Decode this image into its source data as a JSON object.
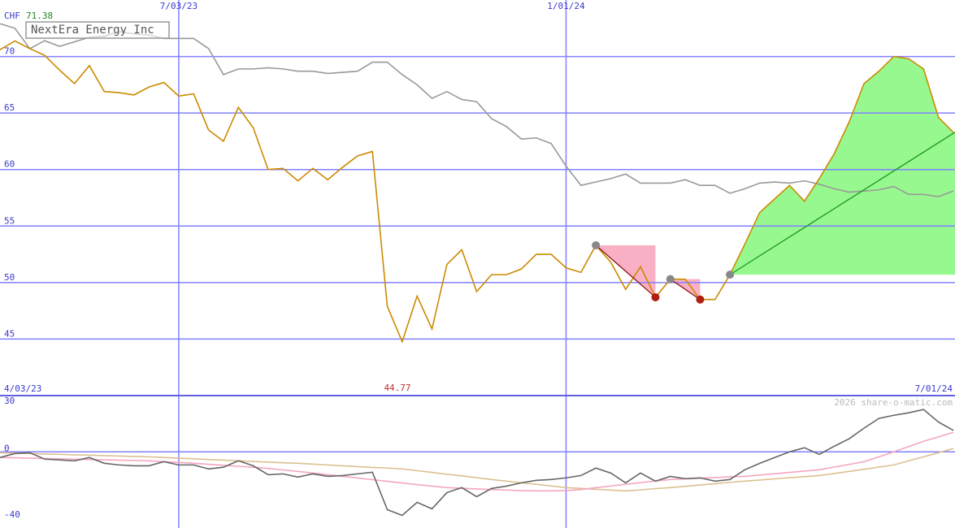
{
  "chart_data": [
    {
      "type": "line",
      "title": "NextEra Energy Inc",
      "currency": "CHF",
      "high_label": 71.38,
      "low_label": 44.77,
      "watermark": "2026 share-o-matic.com",
      "categories": [
        "4/03/23",
        null,
        null,
        null,
        null,
        null,
        null,
        null,
        null,
        null,
        null,
        null,
        "7/03/23",
        null,
        null,
        null,
        null,
        null,
        null,
        null,
        null,
        null,
        null,
        null,
        null,
        null,
        null,
        null,
        null,
        null,
        null,
        null,
        null,
        null,
        null,
        null,
        null,
        null,
        "1/01/24",
        null,
        null,
        null,
        null,
        null,
        null,
        null,
        null,
        null,
        null,
        null,
        null,
        null,
        null,
        null,
        null,
        null,
        null,
        null,
        null,
        null,
        null,
        null,
        null,
        null,
        "7/01/24"
      ],
      "series": [
        {
          "name": "NextEra Energy Inc",
          "color": "#cc8a00",
          "values": [
            70.6,
            71.38,
            70.7,
            70.1,
            68.8,
            67.6,
            69.2,
            66.9,
            66.8,
            66.6,
            67.3,
            67.7,
            66.5,
            66.7,
            63.5,
            62.5,
            65.5,
            63.7,
            60.0,
            60.1,
            59.0,
            60.1,
            59.1,
            60.2,
            61.2,
            61.6,
            47.9,
            44.77,
            48.8,
            45.9,
            51.6,
            52.9,
            49.2,
            50.7,
            50.7,
            51.2,
            52.5,
            52.5,
            51.3,
            50.9,
            53.3,
            51.8,
            49.4,
            51.4,
            48.7,
            50.3,
            50.3,
            48.5,
            48.5,
            50.7,
            53.4,
            56.2,
            57.4,
            58.6,
            57.2,
            59.2,
            61.4,
            64.2,
            67.6,
            68.7,
            70.0,
            69.8,
            68.9,
            64.6,
            63.3
          ]
        },
        {
          "color": "#999999",
          "values": [
            72.9,
            72.5,
            70.7,
            71.4,
            70.9,
            71.3,
            71.7,
            71.8,
            72.2,
            72.0,
            71.9,
            71.6,
            71.6,
            71.6,
            70.7,
            68.4,
            68.9,
            68.9,
            69.0,
            68.9,
            68.7,
            68.7,
            68.5,
            68.6,
            68.7,
            69.5,
            69.5,
            68.4,
            67.5,
            66.3,
            66.9,
            66.2,
            66.0,
            64.5,
            63.8,
            62.7,
            62.8,
            62.3,
            60.3,
            58.6,
            58.9,
            59.2,
            59.6,
            58.8,
            58.8,
            58.8,
            59.1,
            58.6,
            58.6,
            57.9,
            58.3,
            58.8,
            58.9,
            58.8,
            59.0,
            58.7,
            58.3,
            58.0,
            58.1,
            58.2,
            58.5,
            57.8,
            57.8,
            57.6,
            58.1
          ]
        }
      ],
      "ylim": [
        40,
        75
      ],
      "yticks": [
        45,
        50,
        55,
        60,
        65,
        70
      ],
      "grid": true
    },
    {
      "type": "line",
      "series": [
        {
          "color": "#666666",
          "values": [
            -3.4,
            -1,
            -0.5,
            -4.4,
            -4.9,
            -5.4,
            -3.4,
            -6.9,
            -7.9,
            -8.4,
            -8.4,
            -5.9,
            -7.9,
            -7.9,
            -10.3,
            -9.3,
            -5.4,
            -8.4,
            -13.8,
            -13.3,
            -15.2,
            -13.3,
            -14.8,
            -14.3,
            -13.3,
            -12.3,
            -34.9,
            -38.4,
            -30.5,
            -34.4,
            -24.6,
            -21.6,
            -27.1,
            -22.1,
            -20.7,
            -18.7,
            -17.2,
            -16.7,
            -15.7,
            -14.3,
            -9.8,
            -12.8,
            -18.7,
            -12.8,
            -17.7,
            -14.8,
            -16.2,
            -15.7,
            -17.7,
            -16.7,
            -10.8,
            -6.9,
            -3.4,
            0,
            2.5,
            -1.5,
            3.4,
            7.9,
            14.3,
            20.2,
            22.1,
            23.6,
            25.6,
            18,
            13
          ]
        },
        {
          "color": "#f4a6c0",
          "values": [
            -3.4,
            -3.6,
            -3.8,
            -4,
            -4.2,
            -4.4,
            -4.6,
            -4.8,
            -5,
            -5.2,
            -5.4,
            -5.9,
            -6.4,
            -6.9,
            -7.5,
            -8.1,
            -8.7,
            -9.3,
            -10,
            -10.9,
            -11.8,
            -12.8,
            -13.8,
            -14.8,
            -15.8,
            -16.8,
            -17.8,
            -18.8,
            -19.8,
            -20.7,
            -21.6,
            -22,
            -22.4,
            -22.8,
            -23.1,
            -23.4,
            -23.6,
            -23.6,
            -23.4,
            -22.8,
            -21.6,
            -20.6,
            -19.6,
            -18.6,
            -17.6,
            -16.7,
            -16.3,
            -15.9,
            -15.5,
            -15.1,
            -14.8,
            -14,
            -13.2,
            -12.4,
            -11.6,
            -10.8,
            -9.2,
            -7.6,
            -5.9,
            -3,
            0,
            3.2,
            6.4,
            9.1,
            11.8
          ]
        },
        {
          "color": "#dcc090",
          "values": [
            -0.5,
            -0.8,
            -1,
            -1.3,
            -1.5,
            -1.8,
            -2,
            -2.3,
            -2.5,
            -2.8,
            -3,
            -3.4,
            -3.8,
            -4.2,
            -4.6,
            -5,
            -5.4,
            -5.8,
            -6.2,
            -6.6,
            -6.9,
            -7.4,
            -7.9,
            -8.4,
            -8.9,
            -9.4,
            -9.8,
            -10.3,
            -11.4,
            -12.4,
            -13.5,
            -14.5,
            -15.6,
            -16.7,
            -17.7,
            -18.7,
            -19.6,
            -20.6,
            -21.6,
            -22.1,
            -22.6,
            -23.1,
            -23.6,
            -23,
            -22.2,
            -21.6,
            -20.8,
            -20,
            -19.2,
            -18.4,
            -17.7,
            -17,
            -16.3,
            -15.6,
            -15,
            -14.3,
            -13.1,
            -11.8,
            -10.5,
            -9.2,
            -7.9,
            -5.4,
            -3,
            -0.5,
            2
          ]
        }
      ],
      "ylim": [
        -46,
        34
      ],
      "yticks": [
        30,
        0,
        -40
      ]
    }
  ]
}
